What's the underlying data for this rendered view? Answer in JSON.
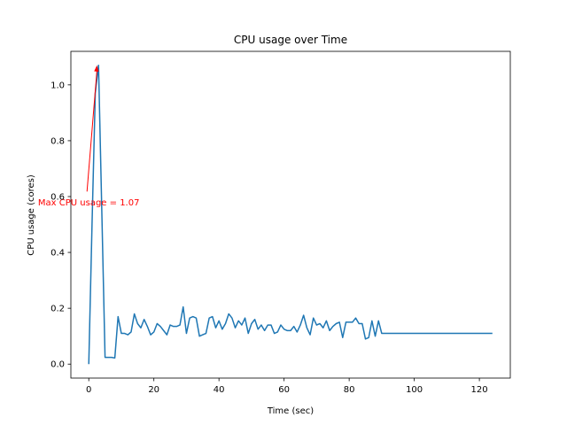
{
  "chart_data": {
    "type": "line",
    "title": "CPU usage over Time",
    "xlabel": "Time (sec)",
    "ylabel": "CPU usage (cores)",
    "xlim": [
      -5.5,
      129.5
    ],
    "ylim": [
      -0.05,
      1.12
    ],
    "xticks": [
      0,
      20,
      40,
      60,
      80,
      100,
      120
    ],
    "xtick_labels": [
      "0",
      "20",
      "40",
      "60",
      "80",
      "100",
      "120"
    ],
    "yticks": [
      0.0,
      0.2,
      0.4,
      0.6,
      0.8,
      1.0
    ],
    "ytick_labels": [
      "0.0",
      "0.2",
      "0.4",
      "0.6",
      "0.8",
      "1.0"
    ],
    "grid": false,
    "line_color": "#1f77b4",
    "annotation_color": "#ff0000",
    "series": [
      {
        "x": [
          0,
          1,
          2,
          3,
          4,
          5,
          6,
          7,
          8,
          9,
          10,
          11,
          12,
          13,
          14,
          15,
          16,
          17,
          18,
          19,
          20,
          21,
          22,
          23,
          24,
          25,
          26,
          27,
          28,
          29,
          30,
          31,
          32,
          33,
          34,
          35,
          36,
          37,
          38,
          39,
          40,
          41,
          42,
          43,
          44,
          45,
          46,
          47,
          48,
          49,
          50,
          51,
          52,
          53,
          54,
          55,
          56,
          57,
          58,
          59,
          60,
          61,
          62,
          63,
          64,
          65,
          66,
          67,
          68,
          69,
          70,
          71,
          72,
          73,
          74,
          75,
          76,
          77,
          78,
          79,
          80,
          81,
          82,
          83,
          84,
          85,
          86,
          87,
          88,
          89,
          90,
          91,
          92,
          93,
          94,
          95,
          96,
          97,
          98,
          99,
          100,
          101,
          102,
          103,
          104,
          105,
          106,
          107,
          108,
          109,
          110,
          111,
          112,
          113,
          114,
          115,
          116,
          117,
          118,
          119,
          120,
          121,
          122,
          123,
          124
        ],
        "values": [
          0.0,
          0.5,
          0.97,
          1.07,
          0.55,
          0.024,
          0.024,
          0.024,
          0.022,
          0.17,
          0.11,
          0.11,
          0.105,
          0.115,
          0.18,
          0.145,
          0.13,
          0.16,
          0.135,
          0.105,
          0.115,
          0.145,
          0.135,
          0.12,
          0.105,
          0.14,
          0.135,
          0.135,
          0.14,
          0.205,
          0.11,
          0.165,
          0.17,
          0.165,
          0.1,
          0.105,
          0.11,
          0.165,
          0.17,
          0.13,
          0.155,
          0.125,
          0.145,
          0.18,
          0.165,
          0.13,
          0.155,
          0.14,
          0.165,
          0.11,
          0.145,
          0.16,
          0.125,
          0.14,
          0.12,
          0.14,
          0.14,
          0.11,
          0.115,
          0.14,
          0.125,
          0.12,
          0.12,
          0.135,
          0.115,
          0.14,
          0.175,
          0.13,
          0.105,
          0.165,
          0.14,
          0.145,
          0.13,
          0.155,
          0.12,
          0.135,
          0.145,
          0.15,
          0.095,
          0.15,
          0.15,
          0.15,
          0.165,
          0.145,
          0.145,
          0.09,
          0.095,
          0.155,
          0.1,
          0.155,
          0.11,
          0.11,
          0.11,
          0.11,
          0.11,
          0.11,
          0.11,
          0.11,
          0.11,
          0.11,
          0.11,
          0.11,
          0.11,
          0.11,
          0.11,
          0.11,
          0.11,
          0.11,
          0.11,
          0.11,
          0.11,
          0.11,
          0.11,
          0.11,
          0.11,
          0.11,
          0.11,
          0.11,
          0.11,
          0.11,
          0.11,
          0.11,
          0.11,
          0.11,
          0.11
        ]
      }
    ],
    "annotation": {
      "text": "Max CPU usage = 1.07",
      "point_x": 2.5,
      "point_y": 1.07,
      "text_x": 0,
      "text_y": 0.58
    }
  }
}
